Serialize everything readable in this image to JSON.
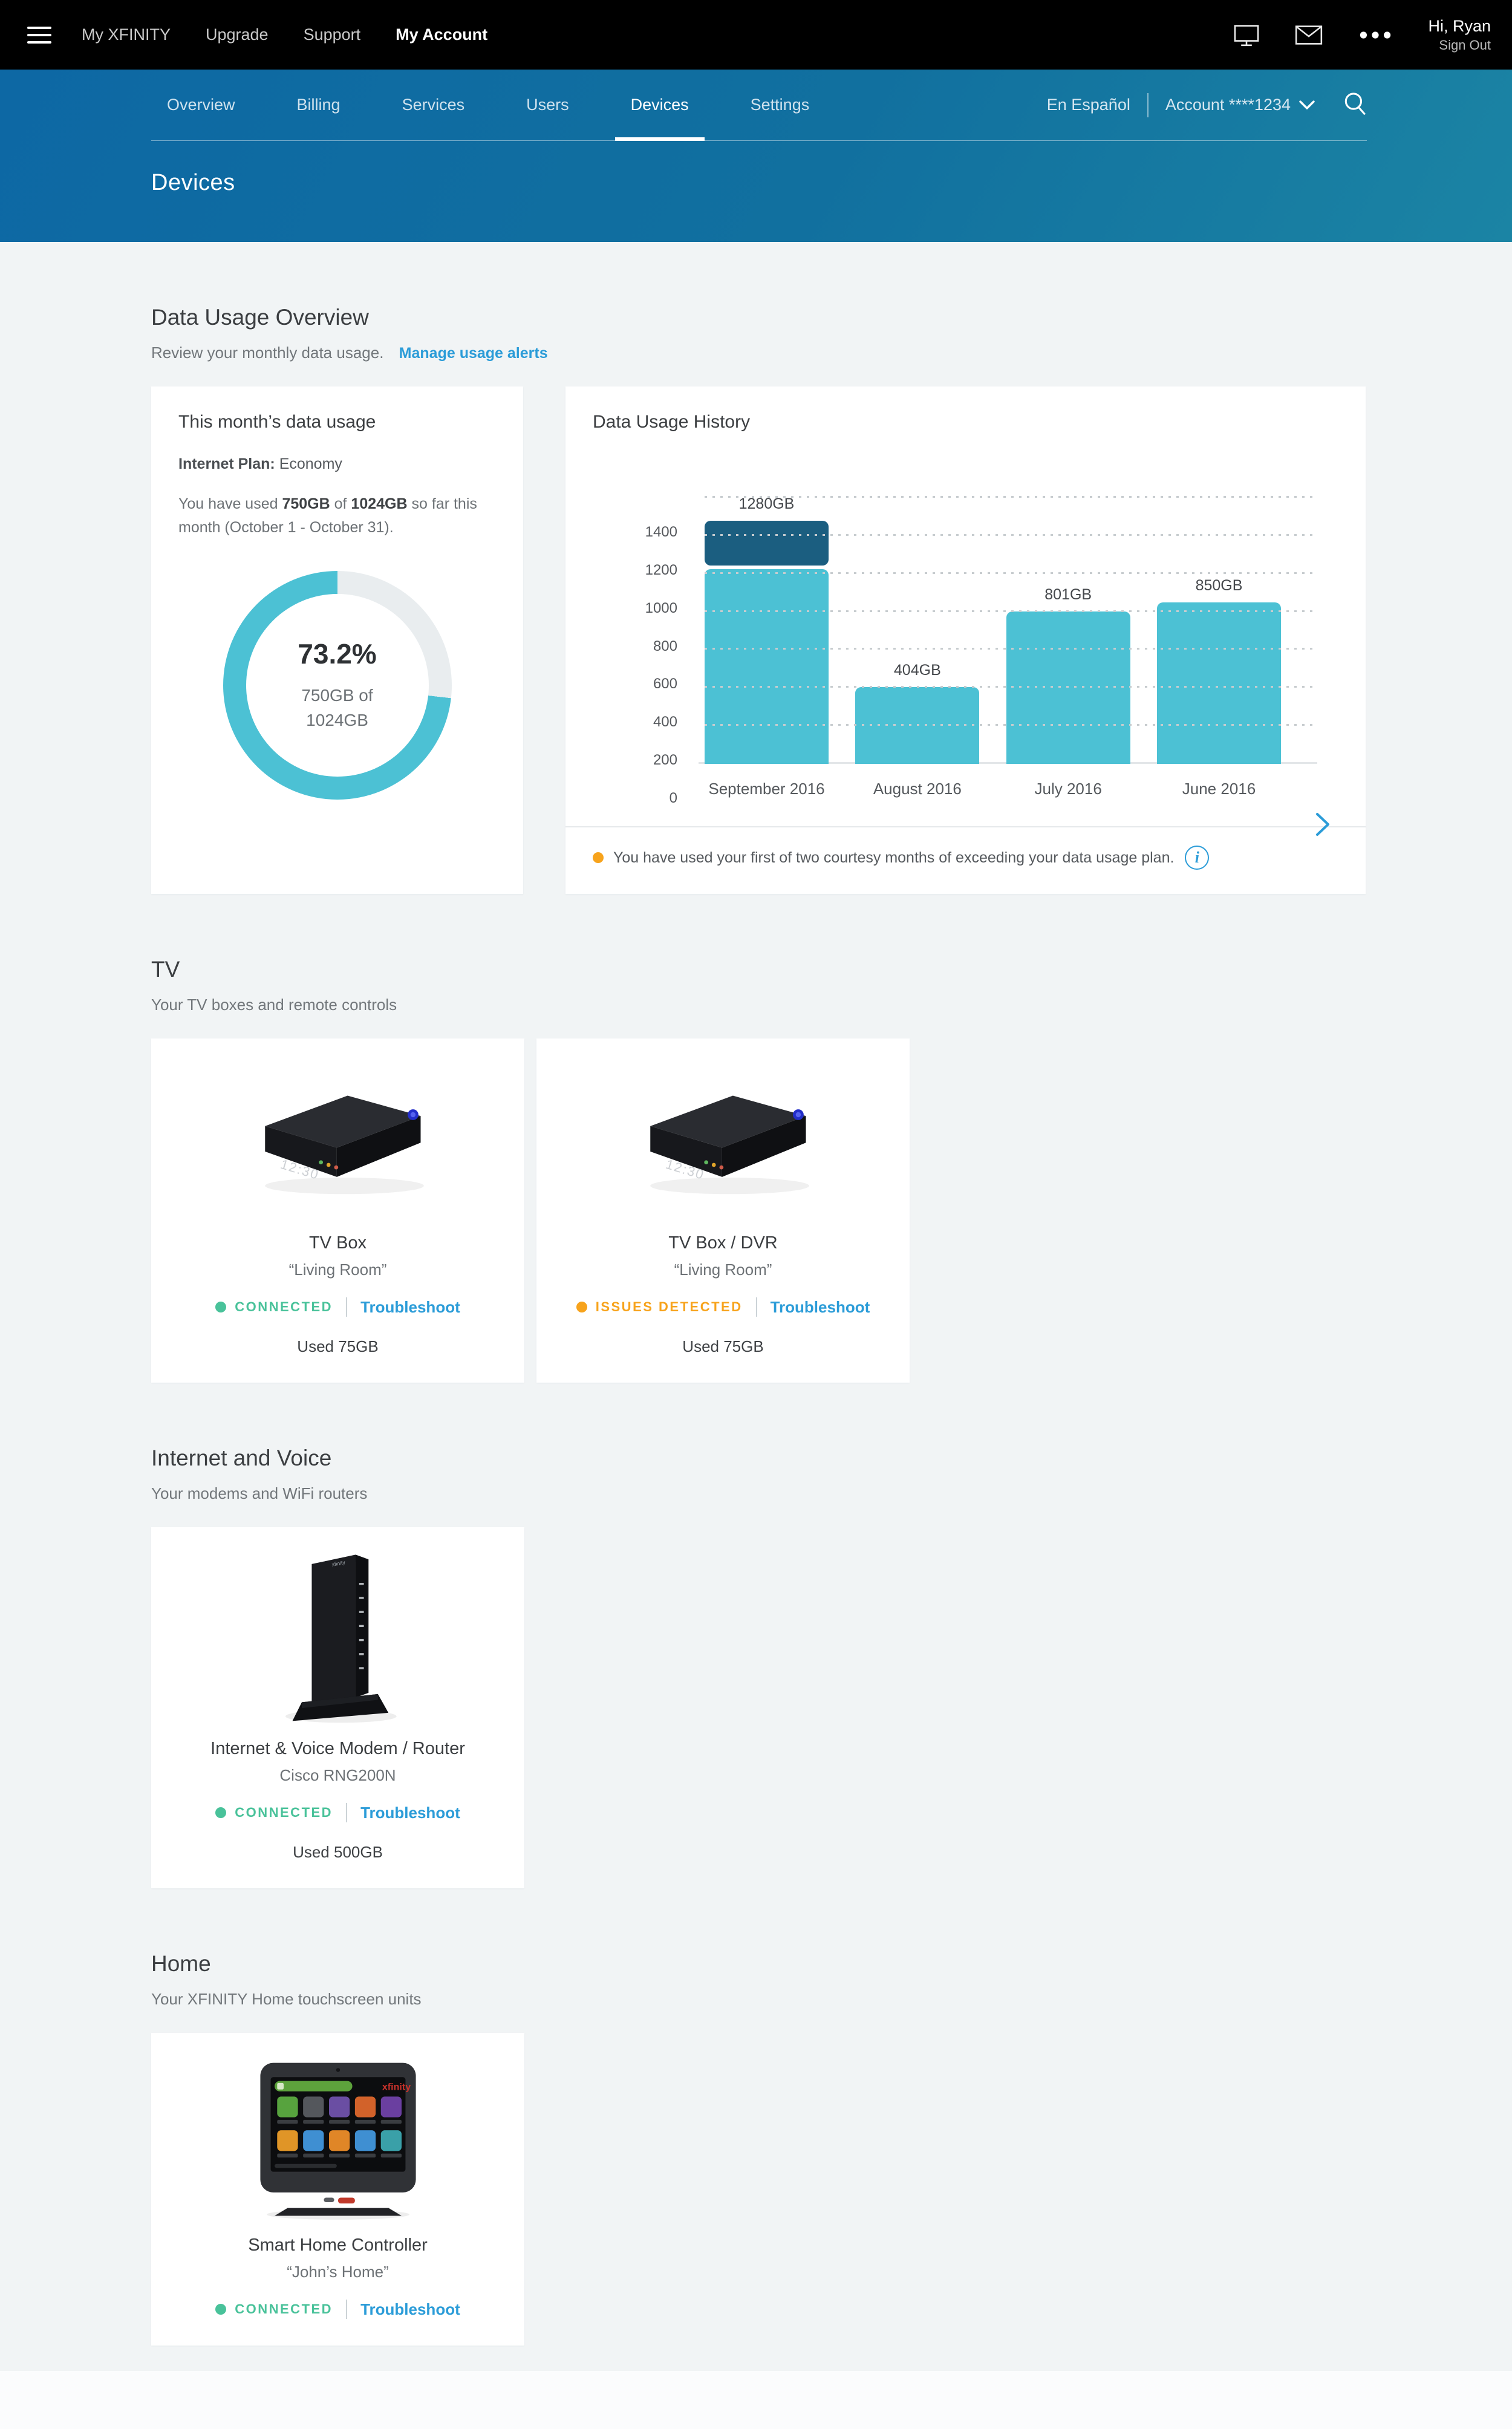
{
  "colors": {
    "accent_blue": "#2b9cd8",
    "teal": "#4cc1d4",
    "over_limit_dark": "#1b5e80",
    "donut_track": "#e9edef",
    "status_green": "#49c29a",
    "status_orange": "#f7a31c",
    "header_gradient_start": "#0d68a4",
    "header_gradient_end": "#1b84a4"
  },
  "icons": {
    "hamburger": "hamburger-menu-icon",
    "monitor": "monitor-icon",
    "mail": "mail-icon",
    "more": "ellipsis-icon",
    "caret": "chevron-down-icon",
    "search": "search-icon",
    "next": "chevron-right-icon",
    "info": "info-icon"
  },
  "topbar": {
    "items": [
      "My XFINITY",
      "Upgrade",
      "Support",
      "My Account"
    ],
    "active_item": "My Account",
    "greeting": "Hi, Ryan",
    "sign_out": "Sign Out"
  },
  "subnav": {
    "items": [
      "Overview",
      "Billing",
      "Services",
      "Users",
      "Devices",
      "Settings"
    ],
    "active_item": "Devices",
    "language_link": "En Español",
    "account_label": "Account ****1234",
    "page_title": "Devices"
  },
  "overview": {
    "title": "Data Usage Overview",
    "subtitle": "Review your monthly data usage.",
    "manage_link": "Manage usage alerts",
    "month_card": {
      "title": "This month’s data usage",
      "plan_label": "Internet Plan:",
      "plan_value": " Economy",
      "usage_pre": "You have used ",
      "used": "750GB",
      "of_word": " of ",
      "total": "1024GB",
      "usage_post": " so far this month (October 1 - October 31)."
    },
    "history_card": {
      "footnote": "You have used your first of two courtesy months of exceeding your data usage plan."
    }
  },
  "chart_data": [
    {
      "type": "bar",
      "title": "Data Usage History",
      "categories": [
        "September 2016",
        "August 2016",
        "July 2016",
        "June 2016"
      ],
      "values": [
        1280,
        404,
        801,
        850
      ],
      "bar_labels": [
        "1280GB",
        "404GB",
        "801GB",
        "850GB"
      ],
      "ylim": [
        0,
        1400
      ],
      "yticks": [
        0,
        200,
        400,
        600,
        800,
        1000,
        1200,
        1400
      ],
      "grid": "dotted-horizontal",
      "legend_position": "none",
      "plan_limit": 1024,
      "bar_color": "#4cc1d4",
      "over_limit_color": "#1b5e80",
      "note": "Portion of a bar above the 1024GB plan limit is drawn dark blue"
    },
    {
      "type": "pie",
      "subtype": "donut",
      "percent": 73.2,
      "label": "73.2%",
      "sublabel_line1": "750GB of",
      "sublabel_line2": "1024GB",
      "values": [
        {
          "name": "used",
          "value": 750
        },
        {
          "name": "remaining",
          "value": 274
        }
      ],
      "total": 1024,
      "used_color": "#4cc1d4",
      "remaining_color": "#e9edef",
      "direction": "counterclockwise-from-top"
    }
  ],
  "tv": {
    "heading": "TV",
    "subheading": "Your TV boxes and remote controls",
    "cards": [
      {
        "name": "TV Box",
        "location": "“Living Room”",
        "status": "CONNECTED",
        "status_type": "connected",
        "action": "Troubleshoot",
        "usage": "Used 75GB"
      },
      {
        "name": "TV Box / DVR",
        "location": "“Living Room”",
        "status": "ISSUES DETECTED",
        "status_type": "issues",
        "action": "Troubleshoot",
        "usage": "Used 75GB"
      }
    ]
  },
  "internet": {
    "heading": "Internet and Voice",
    "subheading": "Your modems and WiFi routers",
    "cards": [
      {
        "name": "Internet & Voice Modem / Router",
        "location": "Cisco RNG200N",
        "status": "CONNECTED",
        "status_type": "connected",
        "action": "Troubleshoot",
        "usage": "Used 500GB"
      }
    ]
  },
  "home": {
    "heading": "Home",
    "subheading": "Your XFINITY Home touchscreen units",
    "screen_icon_colors": [
      [
        "#57a33e",
        "#54575c",
        "#6a4ea3",
        "#d2622a",
        "#6a3fa0"
      ],
      [
        "#e09527",
        "#3f8fd2",
        "#e08627",
        "#3f8fd2",
        "#3aa0a8"
      ]
    ],
    "cards": [
      {
        "name": "Smart Home Controller",
        "location": "“John’s Home”",
        "status": "CONNECTED",
        "status_type": "connected",
        "action": "Troubleshoot"
      }
    ]
  }
}
